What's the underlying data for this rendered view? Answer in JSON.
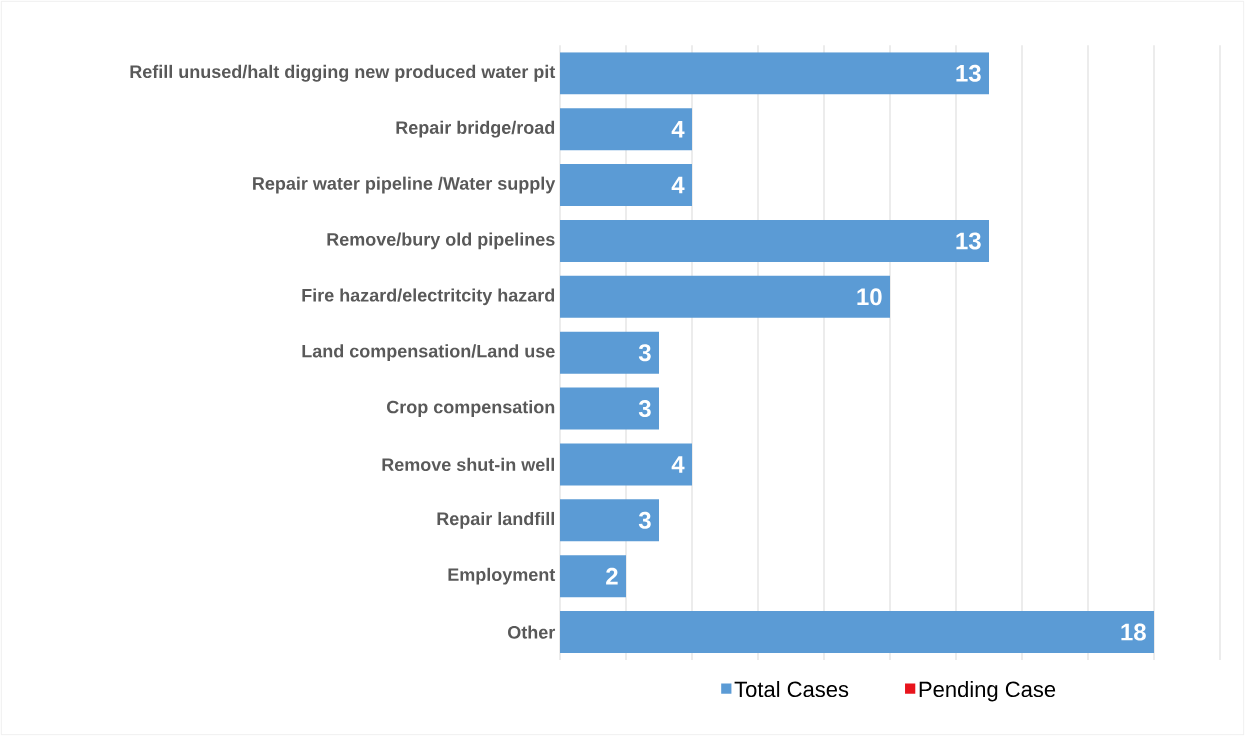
{
  "chart_data": {
    "type": "bar",
    "orientation": "horizontal",
    "categories": [
      "Refill unused/halt digging new produced water pit",
      "Repair bridge/road",
      "Repair water pipeline /Water supply",
      "Remove/bury old pipelines",
      "Fire hazard/electritcity hazard",
      "Land compensation/Land use",
      "Crop compensation",
      "Remove shut-in well",
      "Repair landfill",
      "Employment",
      "Other"
    ],
    "series": [
      {
        "name": "Total Cases",
        "color": "#5b9bd5",
        "values": [
          13,
          4,
          4,
          13,
          10,
          3,
          3,
          4,
          3,
          2,
          18
        ]
      },
      {
        "name": "Pending Case",
        "color": "#e8141c",
        "values": [
          null,
          null,
          null,
          null,
          null,
          null,
          null,
          null,
          null,
          null,
          null
        ]
      }
    ],
    "xlim": [
      0,
      20
    ],
    "xticks": [
      {
        "value": 0,
        "label": null
      },
      {
        "value": 2,
        "label": null
      },
      {
        "value": 4,
        "label": null
      },
      {
        "value": 6,
        "label": null
      },
      {
        "value": 8,
        "label": null
      },
      {
        "value": 10,
        "label": null
      },
      {
        "value": 12,
        "label": null
      },
      {
        "value": 14,
        "label": null
      },
      {
        "value": 16,
        "label": null
      },
      {
        "value": 18,
        "label": null
      },
      {
        "value": 20,
        "label": null
      }
    ],
    "tick_labels": "y",
    "grid": "x",
    "legend": "bottom",
    "data_labels": true
  }
}
